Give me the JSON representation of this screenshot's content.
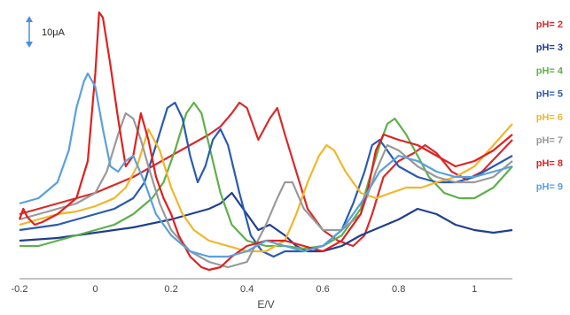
{
  "chart_data": {
    "type": "line",
    "title": "",
    "xlabel": "E/V",
    "ylabel": "",
    "xlim": [
      -0.2,
      1.1
    ],
    "ylim": [
      0,
      100
    ],
    "xticks": [
      -0.2,
      0,
      0.2,
      0.4,
      0.6,
      0.8,
      1
    ],
    "xtick_labels": [
      "-0.2",
      "0",
      "0.2",
      "0.4",
      "0.6",
      "0.8",
      "1"
    ],
    "grid": false,
    "legend_position": "right",
    "scale_bar_label": "10μA",
    "scale_bar_color": "#4a90d9",
    "series": [
      {
        "name": "pH= 2",
        "color": "#d62c2c",
        "x": [
          -0.2,
          -0.15,
          -0.1,
          -0.05,
          0,
          0.05,
          0.1,
          0.15,
          0.2,
          0.25,
          0.3,
          0.33,
          0.36,
          0.38,
          0.4,
          0.43,
          0.46,
          0.48,
          0.5,
          0.53,
          0.56,
          0.6,
          0.64,
          0.68,
          0.71,
          0.73,
          0.76,
          0.8,
          0.84,
          0.87,
          0.9,
          0.94,
          0.98,
          1.02,
          1.06,
          1.1
        ],
        "y": [
          22,
          24,
          26,
          28,
          30,
          33,
          36,
          40,
          44,
          48,
          52,
          55,
          60,
          64,
          62,
          50,
          58,
          62,
          52,
          38,
          24,
          16,
          12,
          10,
          14,
          22,
          36,
          42,
          45,
          48,
          45,
          38,
          35,
          38,
          44,
          50
        ]
      },
      {
        "name": "pH= 3",
        "color": "#1f3f8f",
        "x": [
          -0.2,
          -0.1,
          0,
          0.1,
          0.2,
          0.25,
          0.3,
          0.33,
          0.36,
          0.4,
          0.43,
          0.46,
          0.5,
          0.53,
          0.56,
          0.6,
          0.65,
          0.7,
          0.75,
          0.8,
          0.85,
          0.9,
          0.95,
          1.0,
          1.05,
          1.1
        ],
        "y": [
          12,
          13,
          15,
          17,
          20,
          22,
          24,
          26,
          30,
          22,
          16,
          18,
          14,
          10,
          8,
          8,
          10,
          14,
          17,
          20,
          24,
          22,
          18,
          16,
          15,
          16
        ]
      },
      {
        "name": "pH= 4",
        "color": "#5fb04a",
        "x": [
          -0.2,
          -0.15,
          -0.1,
          -0.05,
          0,
          0.05,
          0.1,
          0.15,
          0.18,
          0.21,
          0.24,
          0.26,
          0.28,
          0.3,
          0.33,
          0.36,
          0.4,
          0.45,
          0.5,
          0.55,
          0.6,
          0.65,
          0.7,
          0.72,
          0.75,
          0.77,
          0.79,
          0.82,
          0.85,
          0.88,
          0.92,
          0.96,
          1.0,
          1.05,
          1.1
        ],
        "y": [
          10,
          10,
          12,
          14,
          16,
          18,
          22,
          28,
          34,
          46,
          60,
          64,
          60,
          48,
          30,
          18,
          12,
          10,
          10,
          9,
          10,
          14,
          24,
          34,
          48,
          56,
          58,
          52,
          44,
          36,
          30,
          28,
          28,
          32,
          40
        ]
      },
      {
        "name": "pH= 5",
        "color": "#2a5bb0",
        "x": [
          -0.2,
          -0.15,
          -0.1,
          -0.05,
          0,
          0.05,
          0.1,
          0.13,
          0.16,
          0.19,
          0.21,
          0.23,
          0.25,
          0.27,
          0.29,
          0.31,
          0.33,
          0.35,
          0.38,
          0.41,
          0.44,
          0.47,
          0.5,
          0.55,
          0.6,
          0.65,
          0.68,
          0.71,
          0.73,
          0.75,
          0.77,
          0.8,
          0.85,
          0.9,
          0.95,
          1.0,
          1.05,
          1.1
        ],
        "y": [
          16,
          17,
          18,
          20,
          22,
          24,
          28,
          34,
          48,
          62,
          64,
          58,
          44,
          34,
          40,
          50,
          54,
          48,
          30,
          14,
          8,
          6,
          8,
          8,
          10,
          16,
          26,
          38,
          48,
          50,
          46,
          40,
          36,
          34,
          34,
          36,
          40,
          44
        ]
      },
      {
        "name": "pH= 6",
        "color": "#f2b52a",
        "x": [
          -0.2,
          -0.15,
          -0.1,
          -0.05,
          0,
          0.05,
          0.08,
          0.11,
          0.14,
          0.17,
          0.2,
          0.23,
          0.26,
          0.3,
          0.35,
          0.4,
          0.45,
          0.5,
          0.53,
          0.56,
          0.59,
          0.61,
          0.63,
          0.66,
          0.7,
          0.74,
          0.78,
          0.82,
          0.86,
          0.9,
          0.95,
          1.0,
          1.05,
          1.1
        ],
        "y": [
          18,
          20,
          22,
          23,
          25,
          28,
          32,
          40,
          54,
          46,
          32,
          22,
          16,
          12,
          10,
          8,
          8,
          12,
          22,
          34,
          44,
          48,
          46,
          38,
          30,
          28,
          30,
          32,
          32,
          34,
          36,
          40,
          48,
          56
        ]
      },
      {
        "name": "pH= 7",
        "color": "#999999",
        "x": [
          -0.2,
          -0.15,
          -0.1,
          -0.05,
          0,
          0.03,
          0.06,
          0.08,
          0.1,
          0.12,
          0.14,
          0.17,
          0.2,
          0.25,
          0.3,
          0.35,
          0.4,
          0.45,
          0.48,
          0.5,
          0.52,
          0.55,
          0.6,
          0.65,
          0.7,
          0.74,
          0.77,
          0.8,
          0.85,
          0.9,
          0.95,
          1.0,
          1.05,
          1.1
        ],
        "y": [
          20,
          22,
          24,
          26,
          30,
          38,
          52,
          60,
          58,
          50,
          40,
          26,
          16,
          8,
          4,
          2,
          4,
          18,
          28,
          34,
          34,
          24,
          16,
          16,
          22,
          38,
          48,
          46,
          40,
          36,
          34,
          34,
          36,
          42
        ]
      },
      {
        "name": "pH= 8",
        "color": "#e02020",
        "x": [
          -0.2,
          -0.19,
          -0.18,
          -0.16,
          -0.14,
          -0.1,
          -0.05,
          -0.02,
          0,
          0.01,
          0.02,
          0.04,
          0.06,
          0.08,
          0.1,
          0.12,
          0.14,
          0.16,
          0.18,
          0.2,
          0.22,
          0.25,
          0.28,
          0.3,
          0.33,
          0.36,
          0.4,
          0.45,
          0.5,
          0.55,
          0.6,
          0.65,
          0.7,
          0.72,
          0.74,
          0.76,
          0.8,
          0.85,
          0.9,
          0.95,
          1.0,
          1.05,
          1.1
        ],
        "y": [
          20,
          24,
          21,
          18,
          19,
          22,
          28,
          42,
          75,
          98,
          96,
          78,
          58,
          40,
          44,
          60,
          50,
          36,
          28,
          22,
          14,
          6,
          2,
          1,
          2,
          6,
          10,
          12,
          12,
          10,
          8,
          12,
          22,
          32,
          46,
          52,
          50,
          48,
          44,
          40,
          42,
          46,
          52
        ]
      },
      {
        "name": "pH= 9",
        "color": "#5aa0dc",
        "x": [
          -0.2,
          -0.15,
          -0.1,
          -0.07,
          -0.05,
          -0.03,
          -0.02,
          0,
          0.02,
          0.04,
          0.06,
          0.08,
          0.1,
          0.13,
          0.16,
          0.2,
          0.25,
          0.3,
          0.35,
          0.4,
          0.45,
          0.5,
          0.55,
          0.6,
          0.65,
          0.7,
          0.75,
          0.8,
          0.85,
          0.9,
          0.95,
          1.0,
          1.05,
          1.1
        ],
        "y": [
          26,
          28,
          34,
          46,
          62,
          72,
          75,
          70,
          54,
          40,
          38,
          42,
          44,
          34,
          22,
          14,
          8,
          6,
          6,
          8,
          12,
          10,
          8,
          10,
          16,
          26,
          38,
          44,
          42,
          38,
          36,
          36,
          38,
          40
        ]
      }
    ]
  }
}
